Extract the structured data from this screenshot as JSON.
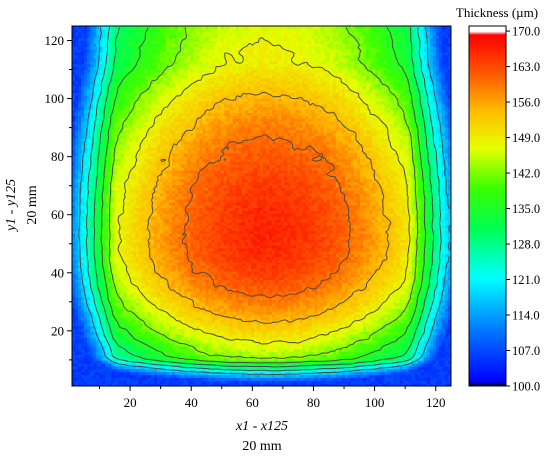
{
  "chart_data": {
    "type": "heatmap",
    "title": "",
    "xlabel": "x1 - x125",
    "xlabel_sub": "20 mm",
    "ylabel": "y1 - y125",
    "ylabel_sub": "20 mm",
    "xlim": [
      1,
      125
    ],
    "ylim": [
      1,
      125
    ],
    "xticks": [
      20,
      40,
      60,
      80,
      100,
      120
    ],
    "yticks": [
      20,
      40,
      60,
      80,
      100,
      120
    ],
    "colorbar": {
      "title": "Thickness (µm)",
      "min": 100.0,
      "max": 171.0,
      "ticks": [
        "170.0",
        "163.0",
        "156.0",
        "149.0",
        "142.0",
        "135.0",
        "128.0",
        "121.0",
        "114.0",
        "107.0",
        "100.0"
      ]
    },
    "grid": false,
    "legend": "colorbar-right",
    "field_model": {
      "peak_center_x": 65,
      "peak_center_y": 52,
      "peak_value": 166,
      "edge_value": 112,
      "contour_levels": [
        118,
        124,
        130,
        136,
        142,
        148,
        154,
        160
      ]
    }
  }
}
